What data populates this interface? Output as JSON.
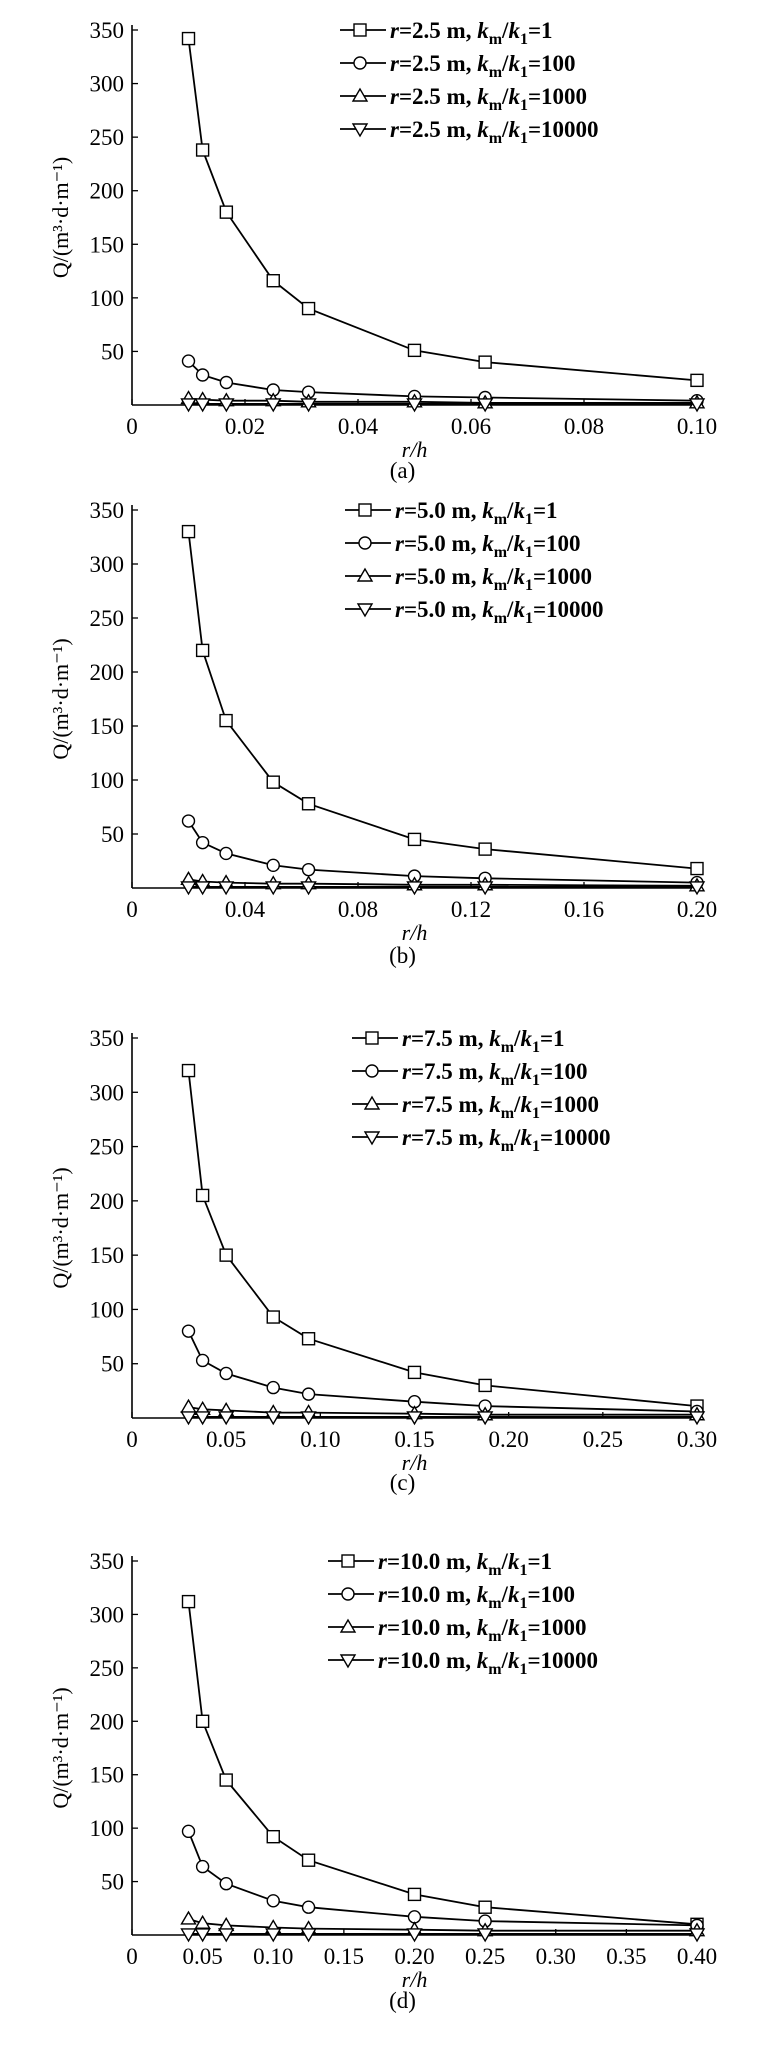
{
  "chart_data": [
    {
      "type": "line",
      "panel_label": "(a)",
      "xlabel": "r/h",
      "ylabel": "Q/(m³·d·m⁻¹)",
      "xlim": [
        0,
        0.1
      ],
      "ylim": [
        0,
        350
      ],
      "x_ticks": [
        "0",
        "0.02",
        "0.04",
        "0.06",
        "0.08",
        "0.10"
      ],
      "x_tick_values": [
        0,
        0.02,
        0.04,
        0.06,
        0.08,
        0.1
      ],
      "y_ticks": [
        50,
        100,
        150,
        200,
        250,
        300,
        350
      ],
      "legend_placement": "top-right",
      "series": [
        {
          "name": "r=2.5 m, km/k1=1",
          "r": "2.5",
          "ratio": "1",
          "marker": "square",
          "x": [
            0.01,
            0.0125,
            0.0167,
            0.025,
            0.03125,
            0.05,
            0.0625,
            0.1
          ],
          "y": [
            342,
            238,
            180,
            116,
            90,
            51,
            40,
            23
          ]
        },
        {
          "name": "r=2.5 m, km/k1=100",
          "r": "2.5",
          "ratio": "100",
          "marker": "circle",
          "x": [
            0.01,
            0.0125,
            0.0167,
            0.025,
            0.03125,
            0.05,
            0.0625,
            0.1
          ],
          "y": [
            41,
            28,
            21,
            14,
            12,
            8,
            7,
            4
          ]
        },
        {
          "name": "r=2.5 m, km/k1=1000",
          "r": "2.5",
          "ratio": "1000",
          "marker": "triangle-up",
          "x": [
            0.01,
            0.0125,
            0.0167,
            0.025,
            0.03125,
            0.05,
            0.0625,
            0.1
          ],
          "y": [
            6,
            5,
            4,
            4,
            3,
            3,
            2,
            2
          ]
        },
        {
          "name": "r=2.5 m, km/k1=10000",
          "r": "2.5",
          "ratio": "10000",
          "marker": "triangle-down",
          "x": [
            0.01,
            0.0125,
            0.0167,
            0.025,
            0.03125,
            0.05,
            0.0625,
            0.1
          ],
          "y": [
            1,
            1,
            1,
            1,
            1,
            1,
            1,
            1
          ]
        }
      ]
    },
    {
      "type": "line",
      "panel_label": "(b)",
      "xlabel": "r/h",
      "ylabel": "Q/(m³·d·m⁻¹)",
      "xlim": [
        0,
        0.2
      ],
      "ylim": [
        0,
        350
      ],
      "x_ticks": [
        "0",
        "0.04",
        "0.08",
        "0.12",
        "0.16",
        "0.20"
      ],
      "x_tick_values": [
        0,
        0.04,
        0.08,
        0.12,
        0.16,
        0.2
      ],
      "y_ticks": [
        50,
        100,
        150,
        200,
        250,
        300,
        350
      ],
      "legend_placement": "top-right",
      "series": [
        {
          "name": "r=5.0 m, km/k1=1",
          "r": "5.0",
          "ratio": "1",
          "marker": "square",
          "x": [
            0.02,
            0.025,
            0.0333,
            0.05,
            0.0625,
            0.1,
            0.125,
            0.2
          ],
          "y": [
            330,
            220,
            155,
            98,
            78,
            45,
            36,
            18
          ]
        },
        {
          "name": "r=5.0 m, km/k1=100",
          "r": "5.0",
          "ratio": "100",
          "marker": "circle",
          "x": [
            0.02,
            0.025,
            0.0333,
            0.05,
            0.0625,
            0.1,
            0.125,
            0.2
          ],
          "y": [
            62,
            42,
            32,
            21,
            17,
            11,
            9,
            5
          ]
        },
        {
          "name": "r=5.0 m, km/k1=1000",
          "r": "5.0",
          "ratio": "1000",
          "marker": "triangle-up",
          "x": [
            0.02,
            0.025,
            0.0333,
            0.05,
            0.0625,
            0.1,
            0.125,
            0.2
          ],
          "y": [
            8,
            6,
            5,
            4,
            4,
            3,
            3,
            2
          ]
        },
        {
          "name": "r=5.0 m, km/k1=10000",
          "r": "5.0",
          "ratio": "10000",
          "marker": "triangle-down",
          "x": [
            0.02,
            0.025,
            0.0333,
            0.05,
            0.0625,
            0.1,
            0.125,
            0.2
          ],
          "y": [
            1,
            1,
            1,
            1,
            1,
            1,
            1,
            1
          ]
        }
      ]
    },
    {
      "type": "line",
      "panel_label": "(c)",
      "xlabel": "r/h",
      "ylabel": "Q/(m³·d·m⁻¹)",
      "xlim": [
        0,
        0.3
      ],
      "ylim": [
        0,
        350
      ],
      "x_ticks": [
        "0",
        "0.05",
        "0.10",
        "0.15",
        "0.20",
        "0.25",
        "0.30"
      ],
      "x_tick_values": [
        0,
        0.05,
        0.1,
        0.15,
        0.2,
        0.25,
        0.3
      ],
      "y_ticks": [
        50,
        100,
        150,
        200,
        250,
        300,
        350
      ],
      "legend_placement": "top-right",
      "series": [
        {
          "name": "r=7.5 m, km/k1=1",
          "r": "7.5",
          "ratio": "1",
          "marker": "square",
          "x": [
            0.03,
            0.0375,
            0.05,
            0.075,
            0.09375,
            0.15,
            0.1875,
            0.3
          ],
          "y": [
            320,
            205,
            150,
            93,
            73,
            42,
            30,
            11
          ]
        },
        {
          "name": "r=7.5 m, km/k1=100",
          "r": "7.5",
          "ratio": "100",
          "marker": "circle",
          "x": [
            0.03,
            0.0375,
            0.05,
            0.075,
            0.09375,
            0.15,
            0.1875,
            0.3
          ],
          "y": [
            80,
            53,
            41,
            28,
            22,
            15,
            11,
            6
          ]
        },
        {
          "name": "r=7.5 m, km/k1=1000",
          "r": "7.5",
          "ratio": "1000",
          "marker": "triangle-up",
          "x": [
            0.03,
            0.0375,
            0.05,
            0.075,
            0.09375,
            0.15,
            0.1875,
            0.3
          ],
          "y": [
            10,
            8,
            7,
            5,
            5,
            4,
            3,
            3
          ]
        },
        {
          "name": "r=7.5 m, km/k1=10000",
          "r": "7.5",
          "ratio": "10000",
          "marker": "triangle-down",
          "x": [
            0.03,
            0.0375,
            0.05,
            0.075,
            0.09375,
            0.15,
            0.1875,
            0.3
          ],
          "y": [
            1,
            1,
            1,
            1,
            1,
            1,
            1,
            1
          ]
        }
      ]
    },
    {
      "type": "line",
      "panel_label": "(d)",
      "xlabel": "r/h",
      "ylabel": "Q/(m³·d·m⁻¹)",
      "xlim": [
        0,
        0.4
      ],
      "ylim": [
        0,
        350
      ],
      "x_ticks": [
        "0",
        "0.05",
        "0.10",
        "0.15",
        "0.20",
        "0.25",
        "0.30",
        "0.35",
        "0.40"
      ],
      "x_tick_values": [
        0,
        0.05,
        0.1,
        0.15,
        0.2,
        0.25,
        0.3,
        0.35,
        0.4
      ],
      "y_ticks": [
        50,
        100,
        150,
        200,
        250,
        300,
        350
      ],
      "legend_placement": "top-right",
      "series": [
        {
          "name": "r=10.0 m, km/k1=1",
          "r": "10.0",
          "ratio": "1",
          "marker": "square",
          "x": [
            0.04,
            0.05,
            0.0667,
            0.1,
            0.125,
            0.2,
            0.25,
            0.4
          ],
          "y": [
            312,
            200,
            145,
            92,
            70,
            38,
            26,
            10
          ]
        },
        {
          "name": "r=10.0 m, km/k1=100",
          "r": "10.0",
          "ratio": "100",
          "marker": "circle",
          "x": [
            0.04,
            0.05,
            0.0667,
            0.1,
            0.125,
            0.2,
            0.25,
            0.4
          ],
          "y": [
            97,
            64,
            48,
            32,
            26,
            17,
            13,
            9
          ]
        },
        {
          "name": "r=10.0 m, km/k1=1000",
          "r": "10.0",
          "ratio": "1000",
          "marker": "triangle-up",
          "x": [
            0.04,
            0.05,
            0.0667,
            0.1,
            0.125,
            0.2,
            0.25,
            0.4
          ],
          "y": [
            15,
            11,
            9,
            7,
            6,
            5,
            4,
            4
          ]
        },
        {
          "name": "r=10.0 m, km/k1=10000",
          "r": "10.0",
          "ratio": "10000",
          "marker": "triangle-down",
          "x": [
            0.04,
            0.05,
            0.0667,
            0.1,
            0.125,
            0.2,
            0.25,
            0.4
          ],
          "y": [
            1,
            1,
            1,
            1,
            1,
            1,
            1,
            1
          ]
        }
      ]
    }
  ]
}
